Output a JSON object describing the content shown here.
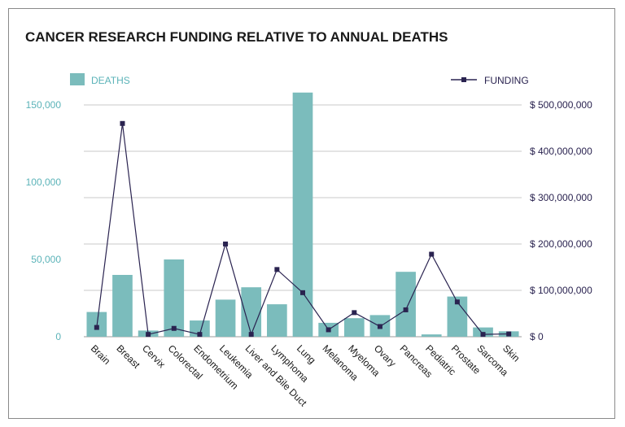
{
  "chart_data": {
    "type": "bar",
    "title": "CANCER RESEARCH FUNDING RELATIVE TO ANNUAL DEATHS",
    "categories": [
      "Brain",
      "Breast",
      "Cervix",
      "Colorectal",
      "Endometrium",
      "Leukemia",
      "Liver and Bile Duct",
      "Lymphoma",
      "Lung",
      "Melanoma",
      "Myeloma",
      "Ovary",
      "Pancreas",
      "Pediatric",
      "Prostate",
      "Sarcoma",
      "Skin"
    ],
    "series": [
      {
        "name": "DEATHS",
        "type": "bar",
        "axis": "left",
        "color": "#7bbcbc",
        "values": [
          16000,
          40000,
          4000,
          50000,
          10500,
          24000,
          32000,
          21000,
          158000,
          9000,
          12000,
          14000,
          42000,
          1500,
          26000,
          6000,
          3500
        ]
      },
      {
        "name": "FUNDING",
        "type": "line",
        "axis": "right",
        "color": "#2a2350",
        "values": [
          20000000,
          460000000,
          5000000,
          18000000,
          5000000,
          200000000,
          5000000,
          145000000,
          95000000,
          15000000,
          52000000,
          22000000,
          58000000,
          178000000,
          75000000,
          5000000,
          6000000
        ]
      }
    ],
    "y_left": {
      "ylim": [
        0,
        165000
      ],
      "ticks": [
        0,
        50000,
        100000,
        150000
      ],
      "tick_labels": [
        "0",
        "50,000",
        "100,000",
        "150,000"
      ]
    },
    "y_right": {
      "ylim": [
        0,
        500000000
      ],
      "ticks": [
        0,
        100000000,
        200000000,
        300000000,
        400000000,
        500000000
      ],
      "tick_labels": [
        "$ 0",
        "$ 100,000,000",
        "$ 200,000,000",
        "$ 300,000,000",
        "$ 400,000,000",
        "$ 500,000,000"
      ]
    },
    "grid": true,
    "legend": [
      {
        "label": "DEATHS",
        "placement": "top-left",
        "color": "#5bb3b8"
      },
      {
        "label": "FUNDING",
        "placement": "top-right",
        "color": "#2a2350"
      }
    ]
  }
}
